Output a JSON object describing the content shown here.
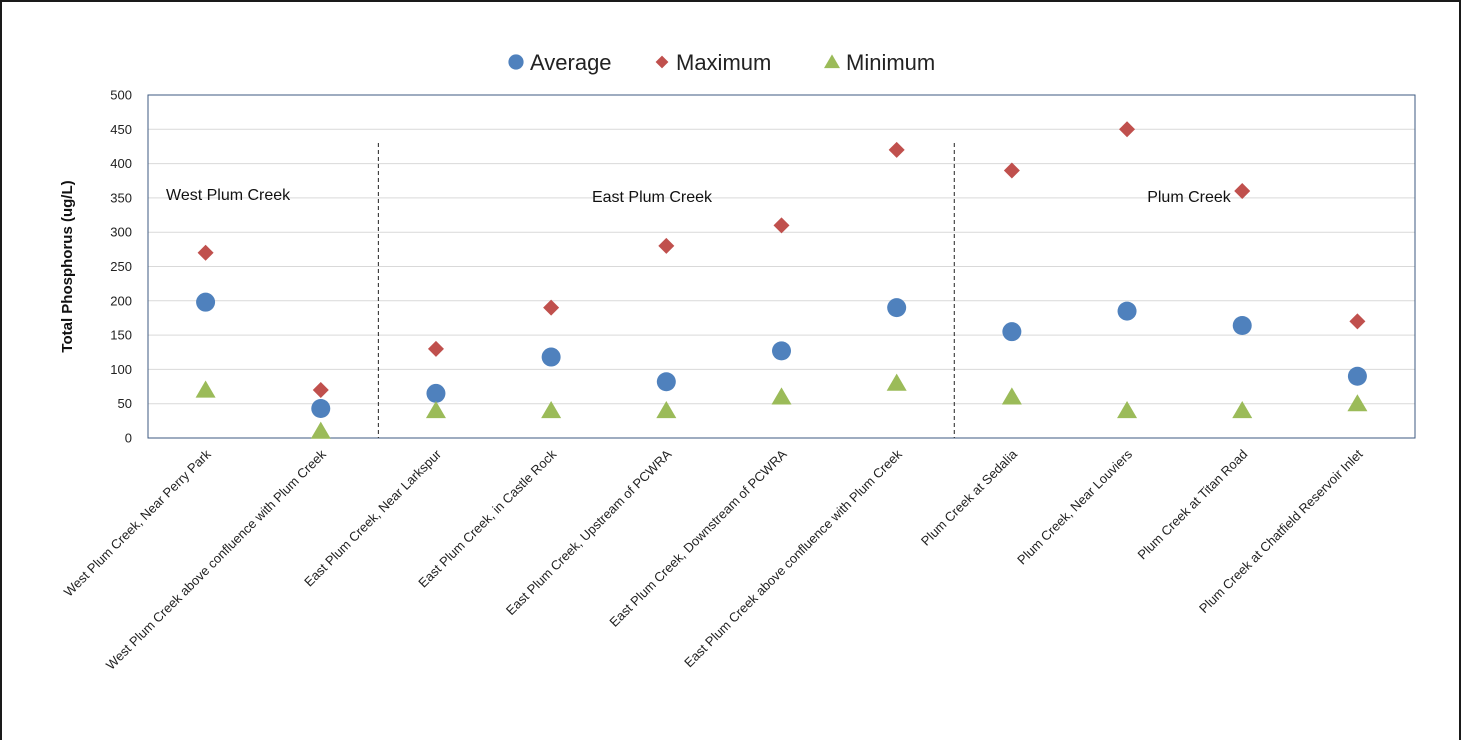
{
  "chart_data": {
    "type": "scatter",
    "ylabel": "Total Phosphorus (ug/L)",
    "ylim": [
      0,
      500
    ],
    "yticks": [
      "0",
      "50",
      "100",
      "150",
      "200",
      "250",
      "300",
      "350",
      "400",
      "450",
      "500"
    ],
    "grid": true,
    "legend_position": "top-center",
    "categories": [
      "West Plum Creek, Near Perry Park",
      "West Plum Creek above confluence with Plum Creek",
      "East Plum Creek, Near Larkspur",
      "East Plum Creek, in Castle Rock",
      "East Plum Creek, Upstream of PCWRA",
      "East Plum Creek, Downstream of PCWRA",
      "East Plum Creek above confluence with Plum Creek",
      "Plum Creek at Sedalia",
      "Plum Creek, Near Louviers",
      "Plum Creek at Titan Road",
      "Plum Creek at Chatfield Reservoir Inlet"
    ],
    "series": [
      {
        "name": "Average",
        "marker": "circle",
        "color": "#4f81bd",
        "values": [
          198,
          43,
          65,
          118,
          82,
          127,
          190,
          155,
          185,
          164,
          90
        ]
      },
      {
        "name": "Maximum",
        "marker": "diamond",
        "color": "#c0504d",
        "values": [
          270,
          70,
          130,
          190,
          280,
          310,
          420,
          390,
          450,
          360,
          170
        ]
      },
      {
        "name": "Minimum",
        "marker": "triangle",
        "color": "#9bbb59",
        "values": [
          70,
          10,
          40,
          40,
          40,
          60,
          80,
          60,
          40,
          40,
          50
        ]
      }
    ],
    "annotations": [
      {
        "text": "West Plum Creek",
        "group_start": 0,
        "group_end": 1
      },
      {
        "text": "East Plum Creek",
        "group_start": 2,
        "group_end": 6
      },
      {
        "text": "Plum Creek",
        "group_start": 7,
        "group_end": 10
      }
    ],
    "dividers_after_category": [
      1,
      6
    ]
  }
}
